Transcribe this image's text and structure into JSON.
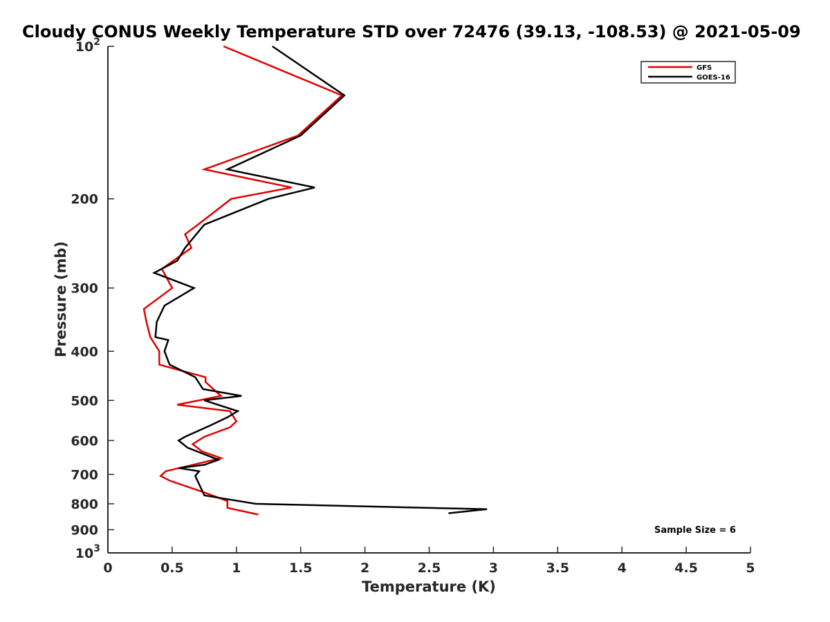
{
  "chart_data": {
    "type": "line",
    "title": "Cloudy CONUS Weekly Temperature STD over 72476 (39.13, -108.53) @ 2021-05-09",
    "xlabel": "Temperature (K)",
    "ylabel": "Pressure (mb)",
    "xlim": [
      0,
      5
    ],
    "ylim": [
      1000,
      100
    ],
    "yscale": "log",
    "y_reversed": true,
    "xticks": [
      "0",
      "0.5",
      "1",
      "1.5",
      "2",
      "2.5",
      "3",
      "3.5",
      "4",
      "4.5",
      "5"
    ],
    "yticks": [
      {
        "base": "10",
        "exp": "2",
        "value": 100
      },
      {
        "label": "200",
        "value": 200
      },
      {
        "label": "300",
        "value": 300
      },
      {
        "label": "400",
        "value": 400
      },
      {
        "label": "500",
        "value": 500
      },
      {
        "label": "600",
        "value": 600
      },
      {
        "label": "700",
        "value": 700
      },
      {
        "label": "800",
        "value": 800
      },
      {
        "label": "900",
        "value": 900
      },
      {
        "base": "10",
        "exp": "3",
        "value": 1000
      }
    ],
    "grid": false,
    "legend_position": "top-right",
    "annotation": "Sample Size = 6",
    "series": [
      {
        "name": "GFS",
        "color": "#e00000",
        "points": [
          [
            0.9,
            100
          ],
          [
            1.82,
            125
          ],
          [
            1.48,
            150
          ],
          [
            0.75,
            175
          ],
          [
            1.43,
            190
          ],
          [
            0.96,
            200
          ],
          [
            0.7,
            225
          ],
          [
            0.6,
            235
          ],
          [
            0.65,
            250
          ],
          [
            0.42,
            275
          ],
          [
            0.5,
            300
          ],
          [
            0.28,
            330
          ],
          [
            0.3,
            350
          ],
          [
            0.33,
            375
          ],
          [
            0.4,
            400
          ],
          [
            0.4,
            425
          ],
          [
            0.76,
            450
          ],
          [
            0.76,
            460
          ],
          [
            0.88,
            490
          ],
          [
            0.54,
            510
          ],
          [
            0.95,
            525
          ],
          [
            1.0,
            550
          ],
          [
            0.95,
            565
          ],
          [
            0.75,
            590
          ],
          [
            0.66,
            610
          ],
          [
            0.73,
            630
          ],
          [
            0.88,
            650
          ],
          [
            0.45,
            690
          ],
          [
            0.41,
            705
          ],
          [
            0.48,
            720
          ],
          [
            0.75,
            760
          ],
          [
            0.93,
            790
          ],
          [
            0.93,
            815
          ],
          [
            1.17,
            840
          ]
        ]
      },
      {
        "name": "GOES-16",
        "color": "#000000",
        "points": [
          [
            1.28,
            100
          ],
          [
            1.84,
            125
          ],
          [
            1.5,
            150
          ],
          [
            0.93,
            175
          ],
          [
            1.61,
            190
          ],
          [
            1.25,
            200
          ],
          [
            0.75,
            225
          ],
          [
            0.6,
            250
          ],
          [
            0.54,
            265
          ],
          [
            0.36,
            280
          ],
          [
            0.67,
            300
          ],
          [
            0.44,
            325
          ],
          [
            0.38,
            350
          ],
          [
            0.37,
            375
          ],
          [
            0.47,
            380
          ],
          [
            0.44,
            400
          ],
          [
            0.48,
            425
          ],
          [
            0.68,
            450
          ],
          [
            0.74,
            475
          ],
          [
            1.04,
            490
          ],
          [
            0.75,
            500
          ],
          [
            1.01,
            525
          ],
          [
            0.93,
            540
          ],
          [
            0.8,
            560
          ],
          [
            0.6,
            590
          ],
          [
            0.55,
            600
          ],
          [
            0.62,
            620
          ],
          [
            0.86,
            655
          ],
          [
            0.75,
            670
          ],
          [
            0.55,
            680
          ],
          [
            0.71,
            690
          ],
          [
            0.68,
            705
          ],
          [
            0.75,
            770
          ],
          [
            1.15,
            800
          ],
          [
            2.95,
            820
          ],
          [
            2.65,
            835
          ]
        ]
      }
    ]
  }
}
